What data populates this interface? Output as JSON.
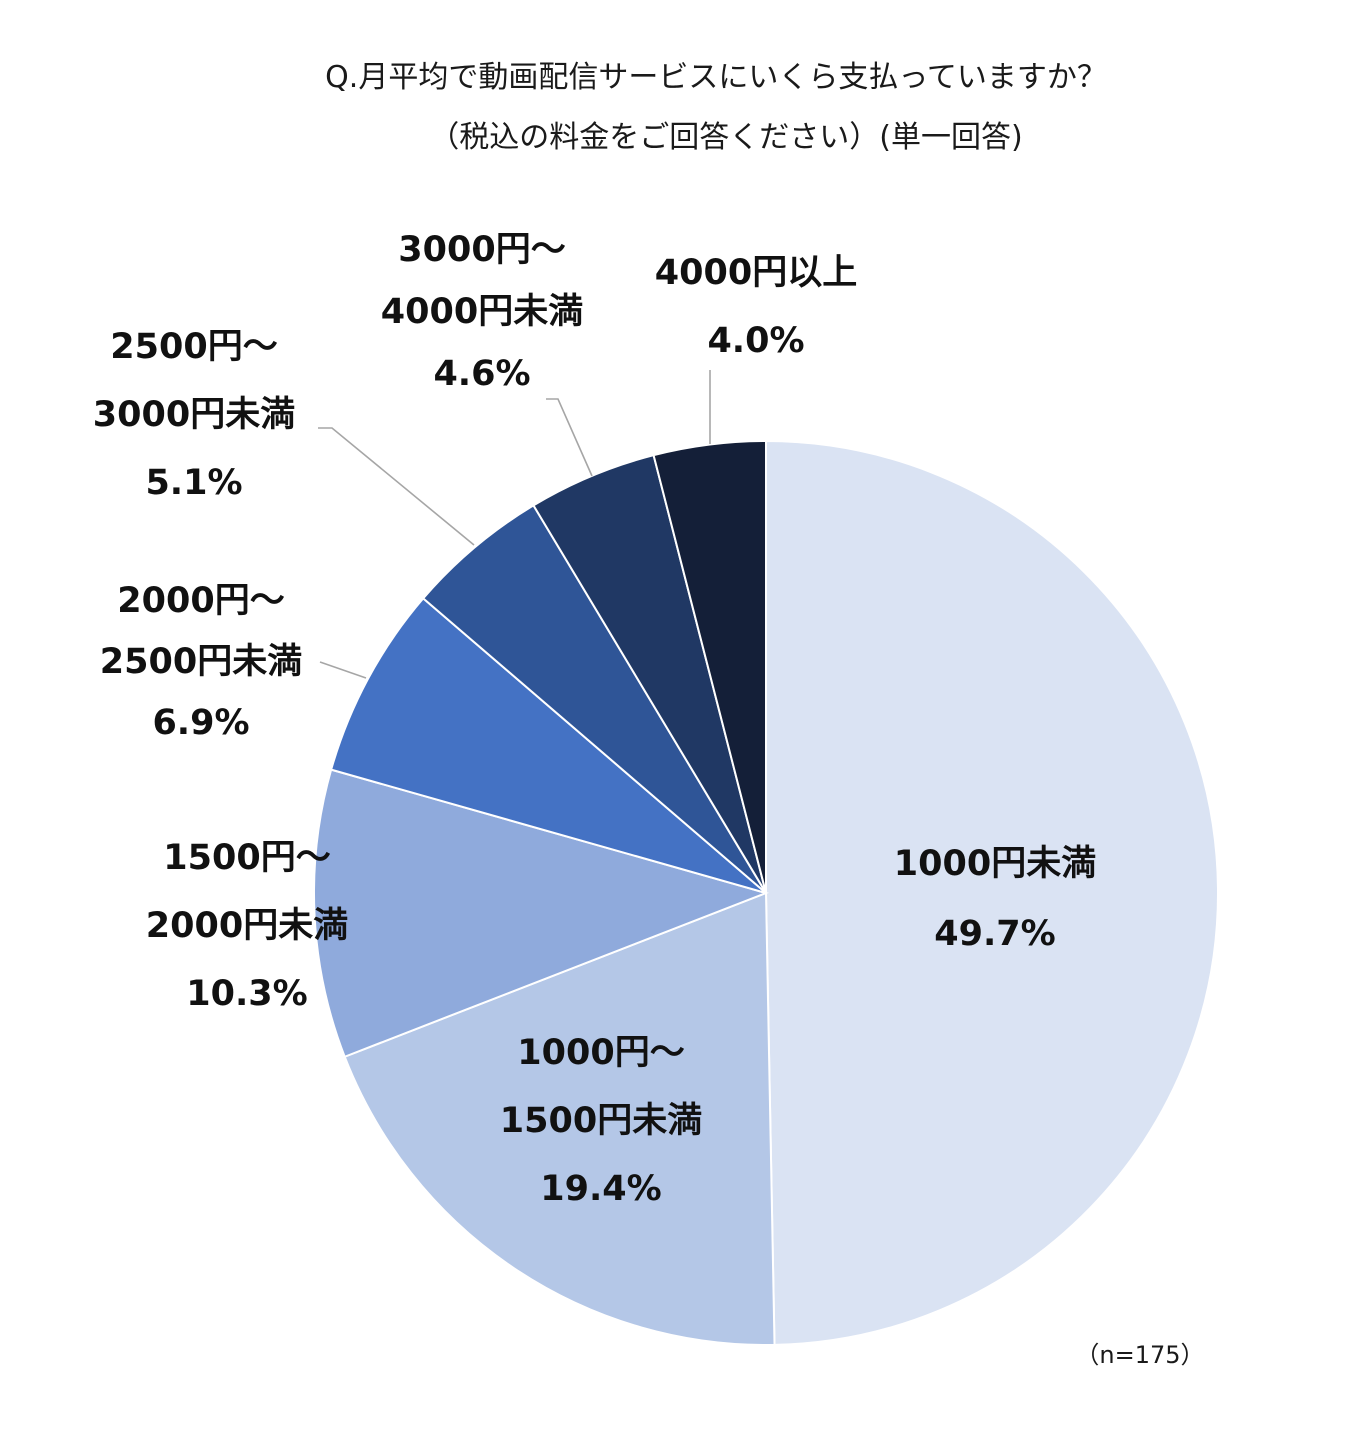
{
  "chart_data": {
    "type": "pie",
    "title": "Q.月平均で動画配信サービスにいくら支払っていますか？",
    "subtitle": "（税込の料金をご回答ください）(単一回答)",
    "note": "（n=175）",
    "start_angle_deg": 0,
    "direction": "clockwise",
    "slices": [
      {
        "label_lines": [
          "1000円未満"
        ],
        "percent_label": "49.7%",
        "value": 49.7,
        "color": "#dae3f3"
      },
      {
        "label_lines": [
          "1000円～",
          "1500円未満"
        ],
        "percent_label": "19.4%",
        "value": 19.4,
        "color": "#b4c7e7"
      },
      {
        "label_lines": [
          "1500円～",
          "2000円未満"
        ],
        "percent_label": "10.3%",
        "value": 10.3,
        "color": "#8faadc"
      },
      {
        "label_lines": [
          "2000円～",
          "2500円未満"
        ],
        "percent_label": "6.9%",
        "value": 6.9,
        "color": "#4472c4"
      },
      {
        "label_lines": [
          "2500円～",
          "3000円未満"
        ],
        "percent_label": "5.1%",
        "value": 5.1,
        "color": "#2f5597"
      },
      {
        "label_lines": [
          "3000円～",
          "4000円未満"
        ],
        "percent_label": "4.6%",
        "value": 4.6,
        "color": "#203864"
      },
      {
        "label_lines": [
          "4000円以上"
        ],
        "percent_label": "4.0%",
        "value": 4.0,
        "color": "#141f38"
      }
    ]
  }
}
